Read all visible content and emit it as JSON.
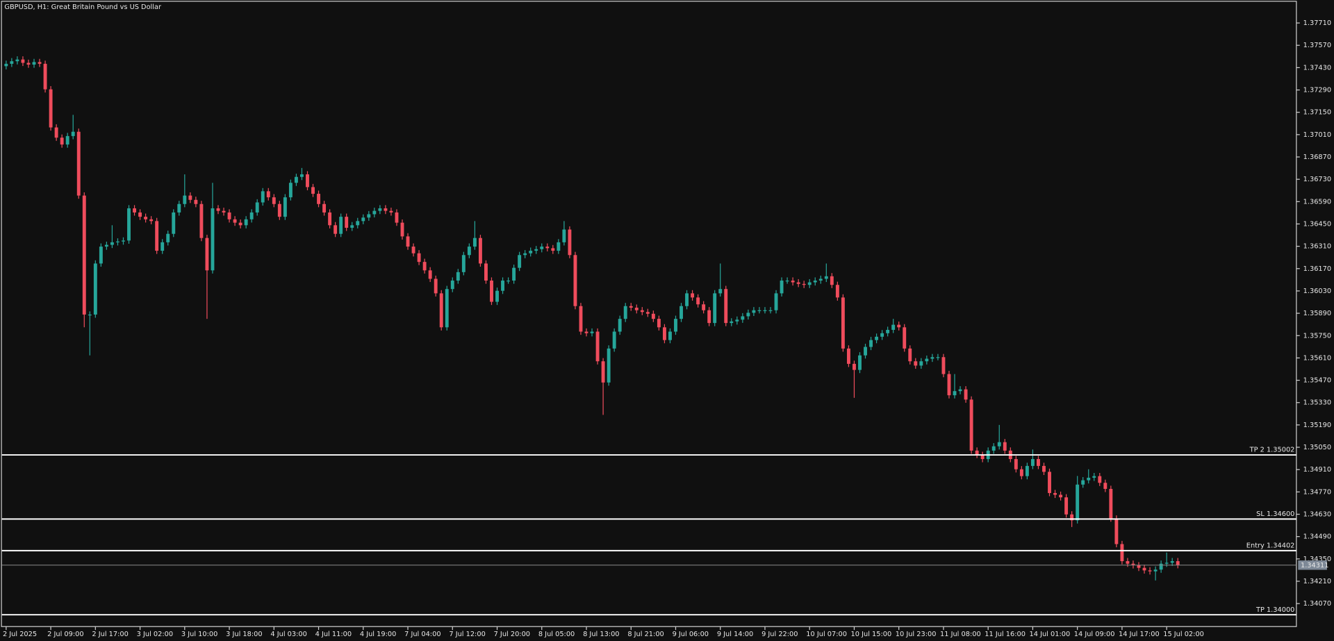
{
  "chart_data": {
    "type": "candlestick",
    "title": "GBPUSD, H1:  Great Britain Pound vs US Dollar",
    "categories": [
      "2 Jul 2025",
      null,
      null,
      null,
      null,
      null,
      null,
      null,
      "2 Jul 09:00",
      null,
      null,
      null,
      null,
      null,
      null,
      null,
      "2 Jul 17:00",
      null,
      null,
      null,
      null,
      null,
      null,
      null,
      "3 Jul 02:00",
      null,
      null,
      null,
      null,
      null,
      null,
      null,
      "3 Jul 10:00",
      null,
      null,
      null,
      null,
      null,
      null,
      null,
      "3 Jul 18:00",
      null,
      null,
      null,
      null,
      null,
      null,
      null,
      "4 Jul 03:00",
      null,
      null,
      null,
      null,
      null,
      null,
      null,
      "4 Jul 11:00",
      null,
      null,
      null,
      null,
      null,
      null,
      null,
      "4 Jul 19:00",
      null,
      null,
      null,
      null,
      null,
      null,
      null,
      "7 Jul 04:00",
      null,
      null,
      null,
      null,
      null,
      null,
      null,
      "7 Jul 12:00",
      null,
      null,
      null,
      null,
      null,
      null,
      null,
      "7 Jul 20:00",
      null,
      null,
      null,
      null,
      null,
      null,
      null,
      "8 Jul 05:00",
      null,
      null,
      null,
      null,
      null,
      null,
      null,
      "8 Jul 13:00",
      null,
      null,
      null,
      null,
      null,
      null,
      null,
      "8 Jul 21:00",
      null,
      null,
      null,
      null,
      null,
      null,
      null,
      "9 Jul 06:00",
      null,
      null,
      null,
      null,
      null,
      null,
      null,
      "9 Jul 14:00",
      null,
      null,
      null,
      null,
      null,
      null,
      null,
      "9 Jul 22:00",
      null,
      null,
      null,
      null,
      null,
      null,
      null,
      "10 Jul 07:00",
      null,
      null,
      null,
      null,
      null,
      null,
      null,
      "10 Jul 15:00",
      null,
      null,
      null,
      null,
      null,
      null,
      null,
      "10 Jul 23:00",
      null,
      null,
      null,
      null,
      null,
      null,
      null,
      "11 Jul 08:00",
      null,
      null,
      null,
      null,
      null,
      null,
      null,
      "11 Jul 16:00",
      null,
      null,
      null,
      null,
      null,
      null,
      null,
      "14 Jul 01:00",
      null,
      null,
      null,
      null,
      null,
      null,
      null,
      "14 Jul 09:00",
      null,
      null,
      null,
      null,
      null,
      null,
      null,
      "14 Jul 17:00",
      null,
      null,
      null,
      null,
      null,
      null,
      null,
      "15 Jul 02:00",
      null,
      null
    ],
    "open": [
      1.37439,
      1.37454,
      1.3747,
      1.37481,
      1.3746,
      1.37449,
      1.37465,
      1.37454,
      1.37294,
      1.37055,
      1.36991,
      1.36948,
      1.37001,
      1.37028,
      1.36628,
      1.35882,
      1.35882,
      1.36202,
      1.36308,
      1.36319,
      1.36335,
      1.3634,
      1.36346,
      1.36548,
      1.36522,
      1.36495,
      1.36479,
      1.36468,
      1.36282,
      1.36335,
      1.36388,
      1.36522,
      1.36575,
      1.36628,
      1.36601,
      1.36575,
      1.36362,
      1.36159,
      1.36548,
      1.36532,
      1.36522,
      1.36479,
      1.36458,
      1.36442,
      1.36479,
      1.36522,
      1.36585,
      1.36655,
      1.36617,
      1.36575,
      1.36495,
      1.36617,
      1.36708,
      1.36745,
      1.36761,
      1.36681,
      1.36639,
      1.36575,
      1.36522,
      1.36442,
      1.36388,
      1.36495,
      1.36426,
      1.36442,
      1.36468,
      1.3649,
      1.36511,
      1.36532,
      1.36548,
      1.36532,
      1.36522,
      1.36458,
      1.36372,
      1.36308,
      1.36266,
      1.36212,
      1.36159,
      1.36106,
      1.36015,
      1.35802,
      1.36042,
      1.36095,
      1.36148,
      1.36255,
      1.36308,
      1.36362,
      1.36202,
      1.36095,
      1.35962,
      1.36031,
      1.36095,
      1.36095,
      1.36175,
      1.36255,
      1.36266,
      1.36282,
      1.36292,
      1.36308,
      1.36298,
      1.36282,
      1.36335,
      1.36415,
      1.36255,
      1.35935,
      1.35775,
      1.35765,
      1.35775,
      1.35589,
      1.35456,
      1.35669,
      1.35775,
      1.35855,
      1.35935,
      1.35925,
      1.35909,
      1.35898,
      1.35887,
      1.35855,
      1.35802,
      1.35722,
      1.35775,
      1.35855,
      1.35935,
      1.36015,
      1.35989,
      1.35946,
      1.35909,
      1.35829,
      1.36015,
      1.36042,
      1.35829,
      1.35839,
      1.3585,
      1.35871,
      1.35893,
      1.35909,
      1.35909,
      1.35909,
      1.35909,
      1.36015,
      1.36095,
      1.36095,
      1.36084,
      1.36074,
      1.36068,
      1.36084,
      1.36095,
      1.36106,
      1.36122,
      1.36068,
      1.35989,
      1.35669,
      1.35573,
      1.35535,
      1.35626,
      1.35679,
      1.35722,
      1.35743,
      1.35765,
      1.35786,
      1.35818,
      1.35802,
      1.35669,
      1.35589,
      1.35562,
      1.35589,
      1.35605,
      1.35615,
      1.35615,
      1.35509,
      1.35376,
      1.35402,
      1.35413,
      1.35349,
      1.35029,
      1.35002,
      1.34976,
      1.35029,
      1.35056,
      1.35082,
      1.35029,
      1.34976,
      1.34912,
      1.34869,
      1.34933,
      1.34976,
      1.34933,
      1.34896,
      1.34763,
      1.34752,
      1.34736,
      1.34629,
      1.34592,
      1.34816,
      1.34843,
      1.34859,
      1.34869,
      1.34827,
      1.34789,
      1.34603,
      1.34443,
      1.34336,
      1.3432,
      1.3431,
      1.34294,
      1.34278,
      1.34272,
      1.34283,
      1.3432,
      1.34326,
      1.34336
    ],
    "high": [
      1.37474,
      1.3749,
      1.37501,
      1.37501,
      1.3748,
      1.37485,
      1.37485,
      1.37474,
      1.37314,
      1.37075,
      1.37011,
      1.37021,
      1.37134,
      1.37048,
      1.36648,
      1.35902,
      1.36222,
      1.36328,
      1.36339,
      1.36442,
      1.3636,
      1.36366,
      1.36568,
      1.36568,
      1.36542,
      1.36515,
      1.36499,
      1.36488,
      1.36355,
      1.36408,
      1.36542,
      1.36595,
      1.36761,
      1.36648,
      1.36621,
      1.36595,
      1.36382,
      1.36708,
      1.36568,
      1.36552,
      1.36542,
      1.36499,
      1.36478,
      1.36499,
      1.36542,
      1.36605,
      1.36675,
      1.36675,
      1.36637,
      1.36595,
      1.36637,
      1.36728,
      1.36765,
      1.36801,
      1.36781,
      1.36701,
      1.36659,
      1.36595,
      1.36542,
      1.36462,
      1.36515,
      1.36515,
      1.36462,
      1.36488,
      1.3651,
      1.36531,
      1.36552,
      1.36568,
      1.36568,
      1.36552,
      1.36542,
      1.36478,
      1.36392,
      1.36328,
      1.36286,
      1.36232,
      1.36179,
      1.36126,
      1.36035,
      1.36062,
      1.36115,
      1.36168,
      1.36275,
      1.36328,
      1.36468,
      1.36382,
      1.36222,
      1.36115,
      1.36051,
      1.36115,
      1.36115,
      1.36195,
      1.36275,
      1.36286,
      1.36302,
      1.36312,
      1.36328,
      1.36328,
      1.36318,
      1.36355,
      1.36468,
      1.36435,
      1.36275,
      1.35955,
      1.35795,
      1.35795,
      1.35795,
      1.35609,
      1.35689,
      1.35795,
      1.35875,
      1.35955,
      1.35955,
      1.35945,
      1.35929,
      1.35918,
      1.35907,
      1.35875,
      1.35822,
      1.35795,
      1.35875,
      1.35955,
      1.36035,
      1.36035,
      1.36009,
      1.35966,
      1.35929,
      1.36035,
      1.36202,
      1.36062,
      1.35859,
      1.3587,
      1.35891,
      1.35913,
      1.35929,
      1.35929,
      1.35929,
      1.35929,
      1.36035,
      1.36115,
      1.36115,
      1.36115,
      1.36104,
      1.36094,
      1.36104,
      1.36115,
      1.36126,
      1.36202,
      1.36142,
      1.36088,
      1.36009,
      1.35689,
      1.35593,
      1.35646,
      1.35699,
      1.35742,
      1.35763,
      1.35785,
      1.35806,
      1.35855,
      1.35838,
      1.35822,
      1.35689,
      1.35609,
      1.35609,
      1.35625,
      1.35635,
      1.35635,
      1.35635,
      1.35529,
      1.35509,
      1.35433,
      1.35433,
      1.35369,
      1.35049,
      1.35022,
      1.35049,
      1.35076,
      1.3519,
      1.35102,
      1.35049,
      1.34996,
      1.34932,
      1.34953,
      1.35036,
      1.34996,
      1.34953,
      1.34916,
      1.34783,
      1.34772,
      1.34756,
      1.34649,
      1.3487,
      1.34863,
      1.34912,
      1.34889,
      1.34889,
      1.34847,
      1.34809,
      1.34623,
      1.34463,
      1.34356,
      1.3434,
      1.3433,
      1.34314,
      1.34298,
      1.34303,
      1.3434,
      1.3439,
      1.34356,
      1.34356
    ],
    "low": [
      1.37419,
      1.37434,
      1.3745,
      1.3744,
      1.37429,
      1.37429,
      1.37434,
      1.37274,
      1.37035,
      1.36971,
      1.36928,
      1.36928,
      1.36981,
      1.36608,
      1.35802,
      1.35626,
      1.35862,
      1.36182,
      1.36288,
      1.36299,
      1.36315,
      1.3632,
      1.36326,
      1.36502,
      1.36475,
      1.36459,
      1.36448,
      1.36262,
      1.36262,
      1.36315,
      1.36368,
      1.36502,
      1.36555,
      1.36581,
      1.36555,
      1.36342,
      1.35855,
      1.36139,
      1.36512,
      1.36502,
      1.36459,
      1.36438,
      1.36422,
      1.36422,
      1.36459,
      1.36502,
      1.36565,
      1.36597,
      1.36555,
      1.36475,
      1.36475,
      1.36597,
      1.36688,
      1.36725,
      1.36661,
      1.36619,
      1.36555,
      1.36502,
      1.36422,
      1.36368,
      1.36368,
      1.36406,
      1.36406,
      1.36422,
      1.36448,
      1.3647,
      1.36491,
      1.36512,
      1.36512,
      1.36502,
      1.36438,
      1.36352,
      1.36288,
      1.36246,
      1.36192,
      1.36139,
      1.36086,
      1.35995,
      1.35782,
      1.35782,
      1.36022,
      1.36075,
      1.36128,
      1.36235,
      1.36288,
      1.36182,
      1.36075,
      1.35942,
      1.35942,
      1.36011,
      1.36075,
      1.36075,
      1.36155,
      1.36235,
      1.36246,
      1.36262,
      1.36272,
      1.36278,
      1.36262,
      1.36262,
      1.36315,
      1.36235,
      1.35915,
      1.35755,
      1.35745,
      1.35745,
      1.35569,
      1.35253,
      1.35436,
      1.35649,
      1.35755,
      1.35835,
      1.35905,
      1.35889,
      1.35878,
      1.35867,
      1.35835,
      1.35782,
      1.35702,
      1.35702,
      1.35755,
      1.35835,
      1.35915,
      1.35969,
      1.35926,
      1.35889,
      1.35809,
      1.35809,
      1.35995,
      1.35809,
      1.35809,
      1.35819,
      1.3583,
      1.35851,
      1.35873,
      1.35889,
      1.35889,
      1.35889,
      1.35889,
      1.35995,
      1.36075,
      1.36064,
      1.36054,
      1.36048,
      1.36048,
      1.36064,
      1.36075,
      1.36086,
      1.36048,
      1.35969,
      1.35649,
      1.35553,
      1.3536,
      1.35515,
      1.35606,
      1.35659,
      1.35702,
      1.35723,
      1.35745,
      1.35766,
      1.35782,
      1.35649,
      1.35569,
      1.35542,
      1.35542,
      1.35569,
      1.35585,
      1.35595,
      1.35489,
      1.35356,
      1.35356,
      1.35382,
      1.35329,
      1.35009,
      1.34982,
      1.34956,
      1.34956,
      1.35009,
      1.35036,
      1.35009,
      1.34956,
      1.34892,
      1.34849,
      1.34849,
      1.34913,
      1.34913,
      1.34876,
      1.34743,
      1.34732,
      1.34716,
      1.34609,
      1.3455,
      1.34572,
      1.34796,
      1.34823,
      1.34839,
      1.34807,
      1.34769,
      1.34583,
      1.34423,
      1.34316,
      1.343,
      1.3429,
      1.34274,
      1.34258,
      1.34252,
      1.34215,
      1.34263,
      1.343,
      1.34306,
      1.34291
    ],
    "close": [
      1.37454,
      1.3747,
      1.37481,
      1.3746,
      1.37449,
      1.37465,
      1.37454,
      1.37294,
      1.37055,
      1.36991,
      1.36948,
      1.37001,
      1.37028,
      1.36628,
      1.35882,
      1.35882,
      1.36202,
      1.36308,
      1.36319,
      1.36335,
      1.3634,
      1.36346,
      1.36548,
      1.36522,
      1.36495,
      1.36479,
      1.36468,
      1.36282,
      1.36335,
      1.36388,
      1.36522,
      1.36575,
      1.36628,
      1.36601,
      1.36575,
      1.36362,
      1.36159,
      1.36548,
      1.36532,
      1.36522,
      1.36479,
      1.36458,
      1.36442,
      1.36479,
      1.36522,
      1.36585,
      1.36655,
      1.36617,
      1.36575,
      1.36495,
      1.36617,
      1.36708,
      1.36745,
      1.36761,
      1.36681,
      1.36639,
      1.36575,
      1.36522,
      1.36442,
      1.36388,
      1.36495,
      1.36426,
      1.36442,
      1.36468,
      1.3649,
      1.36511,
      1.36532,
      1.36548,
      1.36532,
      1.36522,
      1.36458,
      1.36372,
      1.36308,
      1.36266,
      1.36212,
      1.36159,
      1.36106,
      1.36015,
      1.35802,
      1.36042,
      1.36095,
      1.36148,
      1.36255,
      1.36308,
      1.36362,
      1.36202,
      1.36095,
      1.35962,
      1.36031,
      1.36095,
      1.36095,
      1.36175,
      1.36255,
      1.36266,
      1.36282,
      1.36292,
      1.36308,
      1.36298,
      1.36282,
      1.36335,
      1.36415,
      1.36255,
      1.35935,
      1.35775,
      1.35765,
      1.35775,
      1.35589,
      1.35456,
      1.35669,
      1.35775,
      1.35855,
      1.35935,
      1.35925,
      1.35909,
      1.35898,
      1.35887,
      1.35855,
      1.35802,
      1.35722,
      1.35775,
      1.35855,
      1.35935,
      1.36015,
      1.35989,
      1.35946,
      1.35909,
      1.35829,
      1.36015,
      1.36042,
      1.35829,
      1.35839,
      1.3585,
      1.35871,
      1.35893,
      1.35909,
      1.35909,
      1.35909,
      1.35909,
      1.36015,
      1.36095,
      1.36095,
      1.36084,
      1.36074,
      1.36068,
      1.36084,
      1.36095,
      1.36106,
      1.36122,
      1.36068,
      1.35989,
      1.35669,
      1.35573,
      1.35535,
      1.35626,
      1.35679,
      1.35722,
      1.35743,
      1.35765,
      1.35786,
      1.35818,
      1.35802,
      1.35669,
      1.35589,
      1.35562,
      1.35589,
      1.35605,
      1.35615,
      1.35615,
      1.35509,
      1.35376,
      1.35402,
      1.35413,
      1.35349,
      1.35029,
      1.35002,
      1.34976,
      1.35029,
      1.35056,
      1.35082,
      1.35029,
      1.34976,
      1.34912,
      1.34869,
      1.34933,
      1.34976,
      1.34933,
      1.34896,
      1.34763,
      1.34752,
      1.34736,
      1.34629,
      1.34592,
      1.34816,
      1.34843,
      1.34859,
      1.34869,
      1.34827,
      1.34789,
      1.34603,
      1.34443,
      1.34336,
      1.3432,
      1.3431,
      1.34294,
      1.34278,
      1.34272,
      1.34283,
      1.3432,
      1.34326,
      1.34336,
      1.34311
    ],
    "colors": {
      "up": "#26a69a",
      "down": "#ef4c5c"
    },
    "ylim": [
      1.33926,
      1.37854
    ],
    "yticks": [
      {
        "value": 1.3771,
        "label": "1.37710"
      },
      {
        "value": 1.3757,
        "label": "1.37570"
      },
      {
        "value": 1.3743,
        "label": "1.37430"
      },
      {
        "value": 1.3729,
        "label": "1.37290"
      },
      {
        "value": 1.3715,
        "label": "1.37150"
      },
      {
        "value": 1.3701,
        "label": "1.37010"
      },
      {
        "value": 1.3687,
        "label": "1.36870"
      },
      {
        "value": 1.3673,
        "label": "1.36730"
      },
      {
        "value": 1.3659,
        "label": "1.36590"
      },
      {
        "value": 1.3645,
        "label": "1.36450"
      },
      {
        "value": 1.3631,
        "label": "1.36310"
      },
      {
        "value": 1.3617,
        "label": "1.36170"
      },
      {
        "value": 1.3603,
        "label": "1.36030"
      },
      {
        "value": 1.3589,
        "label": "1.35890"
      },
      {
        "value": 1.3575,
        "label": "1.35750"
      },
      {
        "value": 1.3561,
        "label": "1.35610"
      },
      {
        "value": 1.3547,
        "label": "1.35470"
      },
      {
        "value": 1.3533,
        "label": "1.35330"
      },
      {
        "value": 1.3519,
        "label": "1.35190"
      },
      {
        "value": 1.3505,
        "label": "1.35050"
      },
      {
        "value": 1.3491,
        "label": "1.34910"
      },
      {
        "value": 1.3477,
        "label": "1.34770"
      },
      {
        "value": 1.3463,
        "label": "1.34630"
      },
      {
        "value": 1.3449,
        "label": "1.34490"
      },
      {
        "value": 1.3435,
        "label": "1.34350"
      },
      {
        "value": 1.3421,
        "label": "1.34210"
      },
      {
        "value": 1.3407,
        "label": "1.34070"
      }
    ],
    "levels": [
      {
        "value": 1.35002,
        "label": "TP 2 1.35002"
      },
      {
        "value": 1.346,
        "label": "SL 1.34600"
      },
      {
        "value": 1.34402,
        "label": "Entry 1.34402"
      },
      {
        "value": 1.34,
        "label": "TP 1.34000"
      }
    ],
    "current_price": 1.34311
  }
}
